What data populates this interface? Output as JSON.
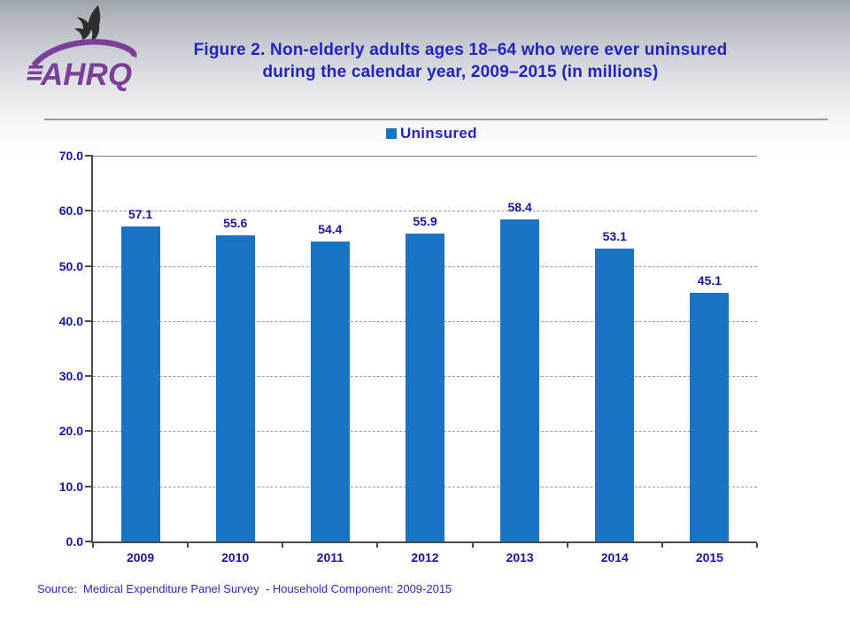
{
  "slide": {
    "title_line1": "Figure 2. Non-elderly adults ages 18–64 who were ever uninsured",
    "title_line2": "during the calendar year, 2009–2015 (in millions)",
    "source": "Source:  Medical Expenditure Panel Survey  - Household Component: 2009-2015",
    "logo_text": "AHRQ"
  },
  "legend": {
    "label": "Uninsured",
    "marker_color": "#1a74c4"
  },
  "chart_data": {
    "type": "bar",
    "title": "Figure 2. Non-elderly adults ages 18–64 who were ever uninsured during the calendar year, 2009–2015 (in millions)",
    "categories": [
      "2009",
      "2010",
      "2011",
      "2012",
      "2013",
      "2014",
      "2015"
    ],
    "series": [
      {
        "name": "Uninsured",
        "values": [
          57.1,
          55.6,
          54.4,
          55.9,
          58.4,
          53.1,
          45.1
        ]
      }
    ],
    "data_labels": [
      "57.1",
      "55.6",
      "54.4",
      "55.9",
      "58.4",
      "53.1",
      "45.1"
    ],
    "xlabel": "",
    "ylabel": "",
    "ylim": [
      0,
      70
    ],
    "ytick_step": 10,
    "ytick_labels": [
      "0.0",
      "10.0",
      "20.0",
      "30.0",
      "40.0",
      "50.0",
      "60.0",
      "70.0"
    ],
    "grid": true,
    "legend_position": "top-center",
    "bar_color": "#1a74c4"
  },
  "colors": {
    "title_text": "#2323be",
    "axis_label_text": "#17179b",
    "source_text": "#2b2bb6",
    "bar": "#1a74c4",
    "axis_line": "#4a4a4a",
    "gridline": "#9b9b9b",
    "divider": "#9a9a9a",
    "logo_purple": "#7b3f97",
    "eagle_dark": "#2e2e2e"
  }
}
